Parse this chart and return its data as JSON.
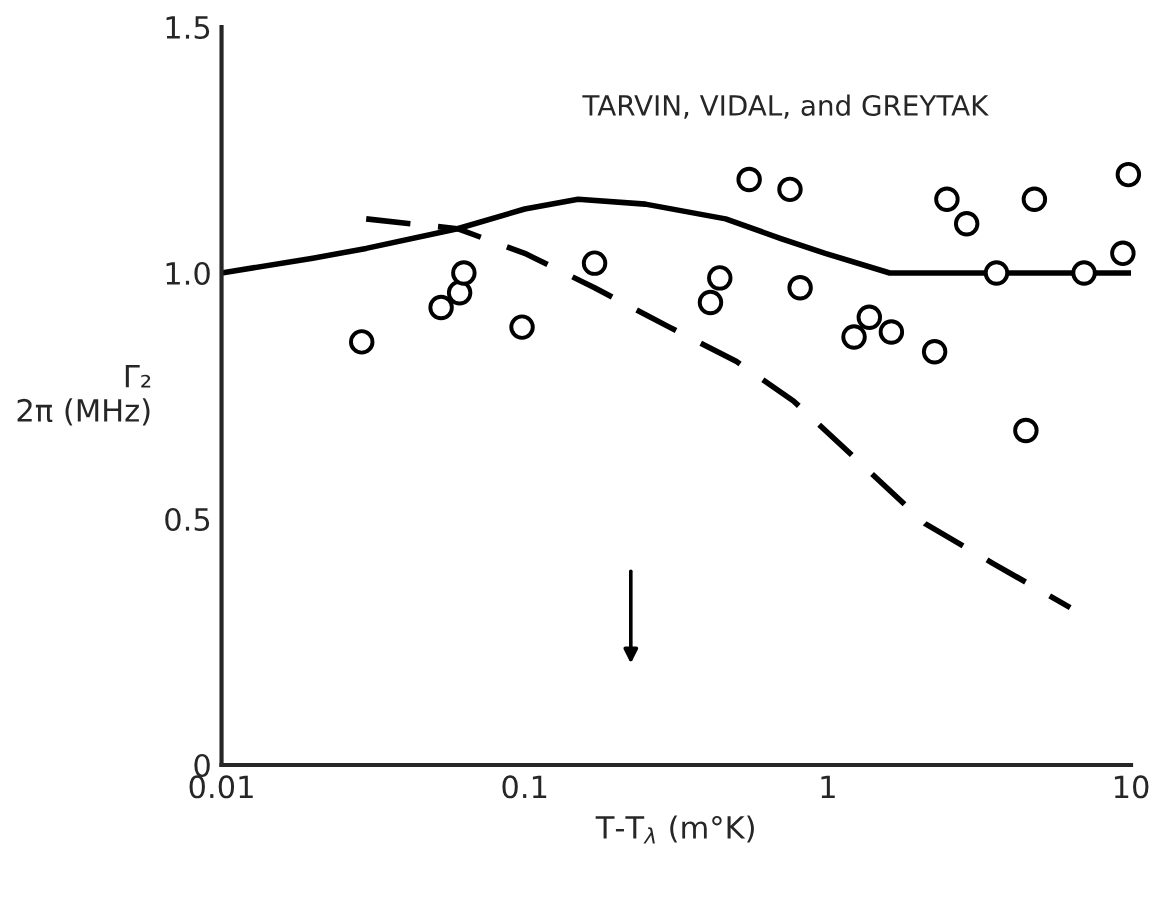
{
  "chart_data": {
    "type": "scatter",
    "xlabel": "T-T$_{λ}$ (m°K)",
    "ylabel": "Γ₂\n2π (MHz)",
    "annotations": [
      "TARVIN, VIDAL, and GREYTAK"
    ],
    "log": "x",
    "xlim": [
      0.01,
      10
    ],
    "xticks": [
      0.01,
      0.1,
      1,
      10
    ],
    "ylim": [
      0,
      1.5
    ],
    "yticks": [
      0,
      0.5,
      {
        "value": 1.0,
        "label": "1.0"
      },
      1.5
    ],
    "grid": false,
    "legend": false,
    "series": [
      {
        "marker": "circle",
        "color": "#000000",
        "x": [
          0.029,
          0.053,
          0.061,
          0.063,
          0.098,
          0.17,
          0.41,
          0.44,
          0.55,
          0.75,
          0.81,
          1.22,
          1.37,
          1.62,
          2.25,
          2.47,
          2.87,
          3.6,
          4.5,
          4.8,
          7.0,
          9.4,
          9.8
        ],
        "values": [
          0.86,
          0.93,
          0.96,
          1.0,
          0.89,
          1.02,
          0.94,
          0.99,
          1.19,
          1.17,
          0.97,
          0.87,
          0.91,
          0.88,
          0.84,
          1.15,
          1.1,
          1.0,
          0.68,
          1.15,
          1.0,
          1.04,
          1.2
        ]
      },
      {
        "type": "line",
        "line_style": "solid",
        "color": "#000000",
        "x": [
          0.01,
          0.02,
          0.03,
          0.06,
          0.1,
          0.15,
          0.25,
          0.46,
          0.7,
          0.98,
          1.6,
          3,
          10
        ],
        "values": [
          1.0,
          1.03,
          1.05,
          1.09,
          1.13,
          1.15,
          1.14,
          1.11,
          1.07,
          1.04,
          1.0,
          1.0,
          1.0
        ]
      },
      {
        "type": "line",
        "line_style": "dashed",
        "color": "#000000",
        "x": [
          0.03,
          0.06,
          0.1,
          0.17,
          0.3,
          0.5,
          0.77,
          1.2,
          2.1,
          3.5,
          6.3
        ],
        "values": [
          1.11,
          1.09,
          1.04,
          0.97,
          0.89,
          0.82,
          0.74,
          0.63,
          0.49,
          0.41,
          0.32
        ]
      }
    ]
  }
}
